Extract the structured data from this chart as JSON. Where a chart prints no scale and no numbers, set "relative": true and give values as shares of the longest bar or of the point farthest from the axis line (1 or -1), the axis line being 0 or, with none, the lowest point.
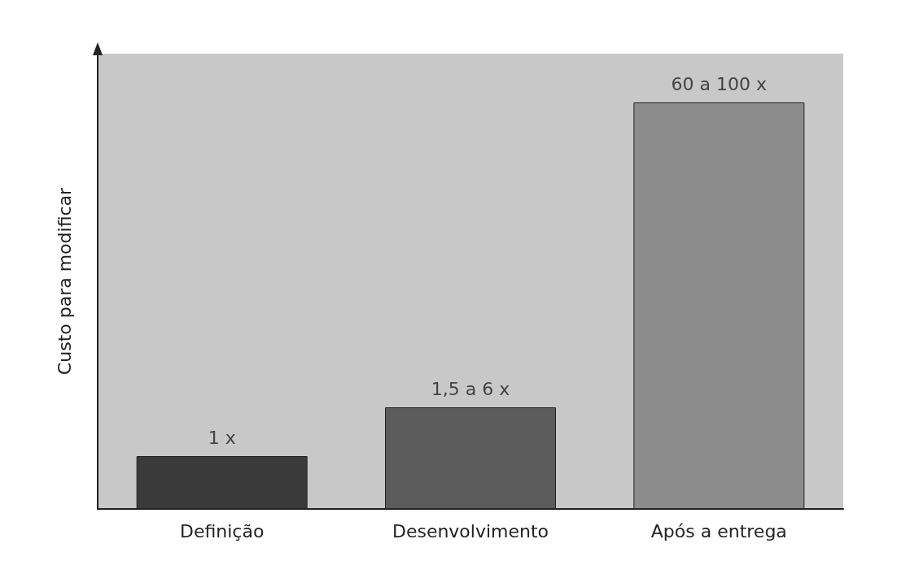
{
  "chart_data": {
    "type": "bar",
    "ylabel": "Custo para modificar",
    "categories": [
      "Definição",
      "Desenvolvimento",
      "Após a entrega"
    ],
    "values": [
      0.13,
      0.25,
      1
    ],
    "colors": [
      "#3a3a3a",
      "#5c5c5c",
      "#8c8c8c"
    ],
    "annotations": [
      {
        "text": "1 x",
        "x": "Definição",
        "y": 0.13
      },
      {
        "text": "1,5 a 6 x",
        "x": "Desenvolvimento",
        "y": 0.25
      },
      {
        "text": "60 a 100 x",
        "x": "Após a entrega",
        "y": 1
      }
    ],
    "relative": true
  }
}
